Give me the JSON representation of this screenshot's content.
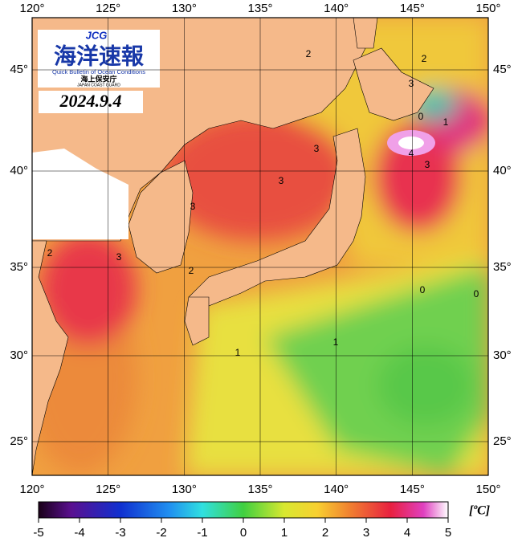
{
  "map": {
    "lon_labels": [
      "120°",
      "125°",
      "130°",
      "135°",
      "140°",
      "145°",
      "150°"
    ],
    "lat_labels": [
      "45°",
      "40°",
      "35°",
      "30°",
      "25°"
    ],
    "logo": {
      "abbr": "JCG",
      "title": "海洋速報",
      "subtitle": "Quick Bulletin of Ocean Conditions",
      "org": "海上保安庁",
      "org_en": "JAPAN COAST GUARD"
    },
    "date": "2024.9.4",
    "contour_labels": [
      "2",
      "2",
      "0",
      "1",
      "3",
      "3",
      "3",
      "3",
      "4",
      "3",
      "2",
      "3",
      "2",
      "0",
      "0",
      "1",
      "1"
    ]
  },
  "colorbar": {
    "lim": [
      -5,
      5
    ],
    "ticks": [
      -5,
      -4,
      -3,
      -2,
      -1,
      0,
      1,
      2,
      3,
      4,
      5
    ],
    "unit": "[ºC]"
  }
}
